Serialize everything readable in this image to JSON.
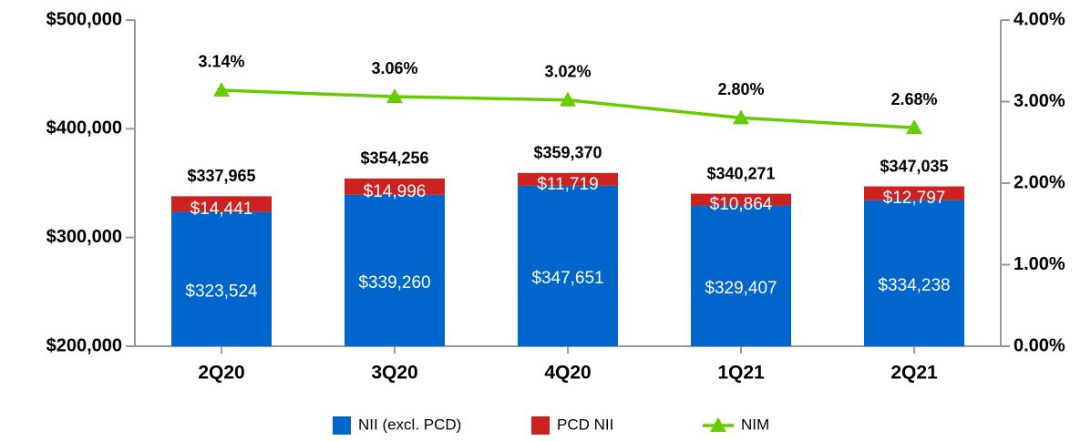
{
  "chart_data": {
    "type": "stacked-bar-line",
    "categories": [
      "2Q20",
      "3Q20",
      "4Q20",
      "1Q21",
      "2Q21"
    ],
    "series": [
      {
        "name": "NII (excl. PCD)",
        "color": "#0066cc",
        "values": [
          323524,
          339260,
          347651,
          329407,
          334238
        ],
        "value_labels": [
          "$323,524",
          "$339,260",
          "$347,651",
          "$329,407",
          "$334,238"
        ]
      },
      {
        "name": "PCD NII",
        "color": "#cc2222",
        "values": [
          14441,
          14996,
          11719,
          10864,
          12797
        ],
        "value_labels": [
          "$14,441",
          "$14,996",
          "$11,719",
          "$10,864",
          "$12,797"
        ]
      },
      {
        "name": "NIM",
        "color": "#66cc00",
        "axis": "y2",
        "values": [
          3.14,
          3.06,
          3.02,
          2.8,
          2.68
        ],
        "value_labels": [
          "3.14%",
          "3.06%",
          "3.02%",
          "2.80%",
          "2.68%"
        ]
      }
    ],
    "total_labels": [
      "$337,965",
      "$354,256",
      "$359,370",
      "$340,271",
      "$347,035"
    ],
    "ylim": [
      200000,
      500000
    ],
    "yticks": [
      {
        "value": 200000,
        "label": "$200,000"
      },
      {
        "value": 300000,
        "label": "$300,000"
      },
      {
        "value": 400000,
        "label": "$400,000"
      },
      {
        "value": 500000,
        "label": "$500,000"
      }
    ],
    "y2lim": [
      0,
      4
    ],
    "y2ticks": [
      {
        "value": 0,
        "label": "0.00%"
      },
      {
        "value": 1,
        "label": "1.00%"
      },
      {
        "value": 2,
        "label": "2.00%"
      },
      {
        "value": 3,
        "label": "3.00%"
      },
      {
        "value": 4,
        "label": "4.00%"
      }
    ],
    "legend": "bottom"
  }
}
